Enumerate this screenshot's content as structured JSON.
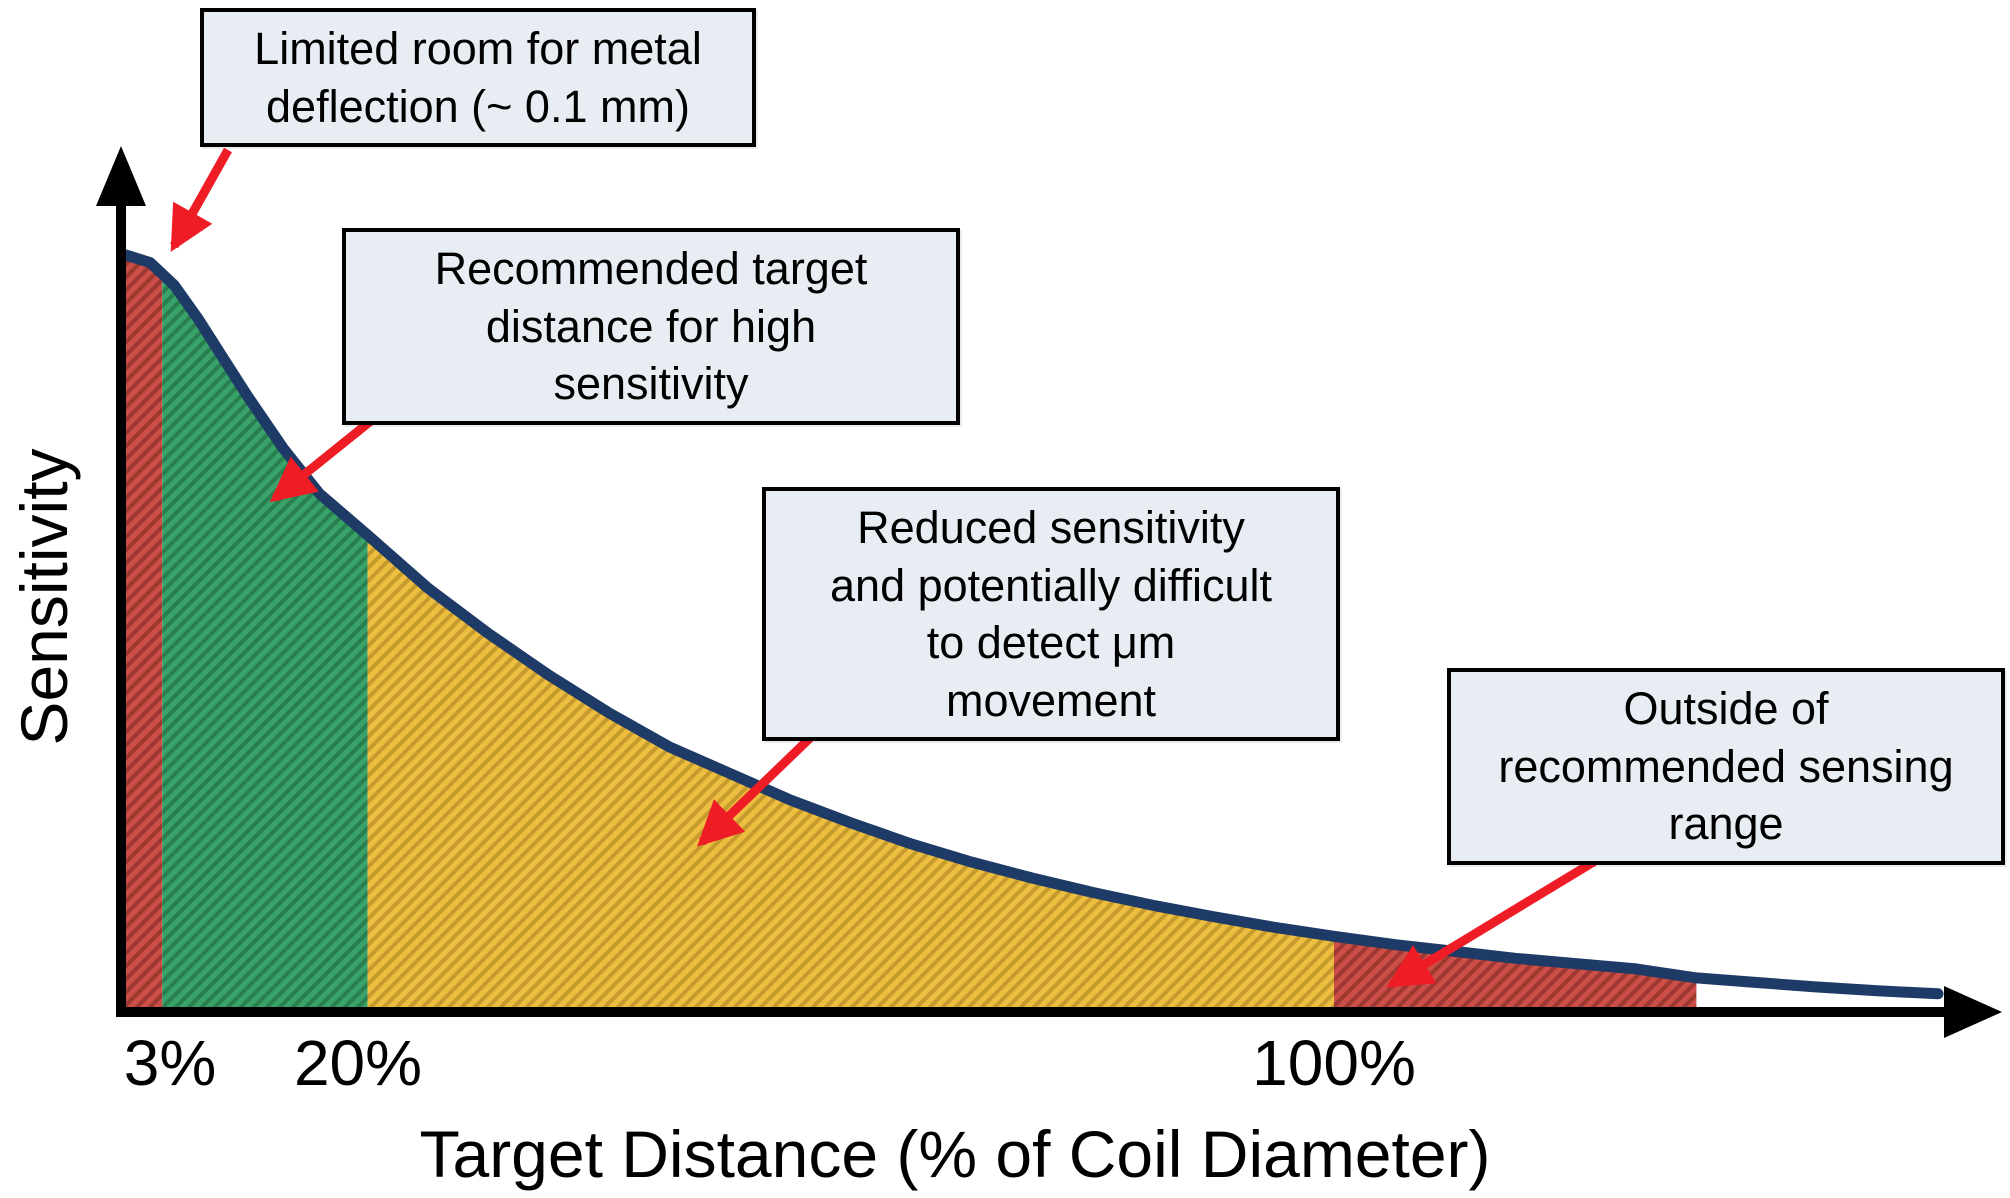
{
  "colors": {
    "curve": "#1E3A66",
    "axis": "#000000",
    "arrow": "#EE1C25",
    "callout_bg": "#E8EDF3",
    "callout_border": "#000000"
  },
  "chart_data": {
    "type": "area",
    "title": "",
    "xlabel": "Target Distance (% of Coil Diameter)",
    "ylabel": "Sensitivity",
    "xlim": [
      0,
      155
    ],
    "ylim": [
      0,
      1.05
    ],
    "grid": false,
    "legend": false,
    "x": [
      0,
      2,
      4,
      6,
      8,
      10,
      13,
      16,
      20,
      25,
      30,
      35,
      40,
      45,
      50,
      55,
      60,
      65,
      70,
      75,
      80,
      85,
      90,
      95,
      100,
      105,
      110,
      115,
      120,
      125,
      130,
      135,
      140,
      145,
      150
    ],
    "y": [
      1.0,
      0.99,
      0.96,
      0.915,
      0.865,
      0.815,
      0.745,
      0.685,
      0.63,
      0.56,
      0.5,
      0.445,
      0.395,
      0.35,
      0.315,
      0.28,
      0.25,
      0.222,
      0.198,
      0.177,
      0.158,
      0.141,
      0.126,
      0.112,
      0.1,
      0.089,
      0.08,
      0.071,
      0.064,
      0.057,
      0.045,
      0.039,
      0.033,
      0.028,
      0.024
    ],
    "x_ticks": [
      {
        "value": 3,
        "label": "3%"
      },
      {
        "value": 20,
        "label": "20%"
      },
      {
        "value": 100,
        "label": "100%"
      }
    ],
    "regions": [
      {
        "label": "Limited room for metal deflection (~ 0.1 mm)",
        "x_range": [
          0,
          3
        ],
        "color": "#CB4F47",
        "hatch_color": "#9E3832"
      },
      {
        "label": "Recommended target distance for high sensitivity",
        "x_range": [
          3,
          20
        ],
        "color": "#38A268",
        "hatch_color": "#2A7F50"
      },
      {
        "label": "Reduced sensitivity and potentially difficult to detect μm movement",
        "x_range": [
          20,
          100
        ],
        "color": "#EDBE40",
        "hatch_color": "#C69B2E"
      },
      {
        "label": "Outside of recommended sensing range",
        "x_range": [
          100,
          130
        ],
        "color": "#CB4F47",
        "hatch_color": "#9E3832"
      }
    ],
    "annotations": [
      {
        "text": "Limited room for metal\ndeflection (~ 0.1 mm)"
      },
      {
        "text": "Recommended target\ndistance for high\nsensitivity"
      },
      {
        "text": "Reduced sensitivity\nand potentially difficult\nto detect μm\nmovement"
      },
      {
        "text": "Outside of\nrecommended sensing\nrange"
      }
    ],
    "curve_color": "#1E3A66"
  }
}
